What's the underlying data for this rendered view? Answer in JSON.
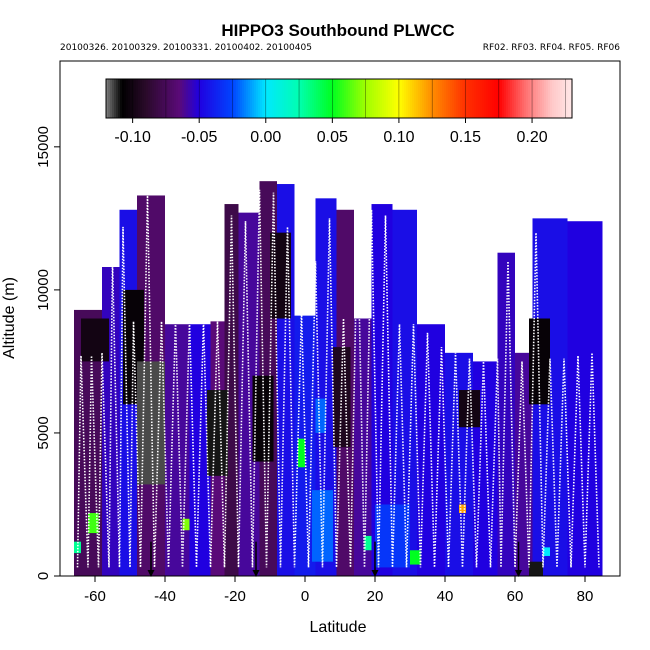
{
  "chart_data": {
    "type": "heatmap",
    "title": "HIPPO3 Southbound PLWCC",
    "dates_text": "20100326. 20100329. 20100331. 20100402. 20100405",
    "flights_text": "RF02. RF03. RF04. RF05. RF06",
    "xlabel": "Latitude",
    "ylabel": "Altitude (m)",
    "xlim": [
      -70,
      90
    ],
    "ylim": [
      0,
      18000
    ],
    "x_ticks": [
      -60,
      -40,
      -20,
      0,
      20,
      40,
      60,
      80
    ],
    "y_ticks": [
      0,
      5000,
      10000,
      15000
    ],
    "x_tick_labels": [
      "-60",
      "-40",
      "-20",
      "0",
      "20",
      "40",
      "60",
      "80"
    ],
    "y_tick_labels": [
      "0",
      "5000",
      "10000",
      "15000"
    ],
    "colorbar": {
      "range": [
        -0.12,
        0.23
      ],
      "ticks": [
        -0.1,
        -0.05,
        0.0,
        0.05,
        0.1,
        0.15,
        0.2
      ],
      "tick_labels": [
        "-0.10",
        "-0.05",
        "0.00",
        "0.05",
        "0.10",
        "0.15",
        "0.20"
      ],
      "stops": [
        {
          "v": -0.12,
          "c": "#7f7f7f"
        },
        {
          "v": -0.108,
          "c": "#000000"
        },
        {
          "v": -0.09,
          "c": "#2a0a2a"
        },
        {
          "v": -0.065,
          "c": "#5a0a78"
        },
        {
          "v": -0.05,
          "c": "#2000e0"
        },
        {
          "v": -0.025,
          "c": "#0044ff"
        },
        {
          "v": 0.0,
          "c": "#00e8ff"
        },
        {
          "v": 0.025,
          "c": "#00ffb0"
        },
        {
          "v": 0.05,
          "c": "#00ff20"
        },
        {
          "v": 0.075,
          "c": "#a0ff00"
        },
        {
          "v": 0.1,
          "c": "#ffff00"
        },
        {
          "v": 0.125,
          "c": "#ff8c00"
        },
        {
          "v": 0.15,
          "c": "#ff3000"
        },
        {
          "v": 0.175,
          "c": "#ff0000"
        },
        {
          "v": 0.195,
          "c": "#ff7070"
        },
        {
          "v": 0.215,
          "c": "#ffc8c8"
        },
        {
          "v": 0.23,
          "c": "#ffe8e8"
        }
      ]
    },
    "columns": [
      {
        "x0": -66,
        "x1": -58,
        "top": 9300,
        "val": -0.075
      },
      {
        "x0": -58,
        "x1": -53,
        "top": 10800,
        "val": -0.055
      },
      {
        "x0": -53,
        "x1": -48,
        "top": 12800,
        "val": -0.045
      },
      {
        "x0": -48,
        "x1": -40,
        "top": 13300,
        "val": -0.07
      },
      {
        "x0": -40,
        "x1": -33,
        "top": 8800,
        "val": -0.06
      },
      {
        "x0": -33,
        "x1": -27,
        "top": 8800,
        "val": -0.05
      },
      {
        "x0": -27,
        "x1": -23,
        "top": 8900,
        "val": -0.065
      },
      {
        "x0": -23,
        "x1": -19,
        "top": 13000,
        "val": -0.08
      },
      {
        "x0": -19,
        "x1": -13,
        "top": 12700,
        "val": -0.06
      },
      {
        "x0": -13,
        "x1": -8,
        "top": 13800,
        "val": -0.075
      },
      {
        "x0": -8,
        "x1": -3,
        "top": 13700,
        "val": -0.045
      },
      {
        "x0": -3,
        "x1": 3,
        "top": 9100,
        "val": -0.04
      },
      {
        "x0": 3,
        "x1": 9,
        "top": 13200,
        "val": -0.045
      },
      {
        "x0": 9,
        "x1": 14,
        "top": 12800,
        "val": -0.07
      },
      {
        "x0": 14,
        "x1": 19,
        "top": 9000,
        "val": -0.06
      },
      {
        "x0": 19,
        "x1": 25,
        "top": 13000,
        "val": -0.05
      },
      {
        "x0": 25,
        "x1": 32,
        "top": 12800,
        "val": -0.045
      },
      {
        "x0": 32,
        "x1": 40,
        "top": 8800,
        "val": -0.05
      },
      {
        "x0": 40,
        "x1": 48,
        "top": 7800,
        "val": -0.045
      },
      {
        "x0": 48,
        "x1": 55,
        "top": 7500,
        "val": -0.05
      },
      {
        "x0": 55,
        "x1": 60,
        "top": 11300,
        "val": -0.055
      },
      {
        "x0": 60,
        "x1": 65,
        "top": 7800,
        "val": -0.06
      },
      {
        "x0": 65,
        "x1": 75,
        "top": 12500,
        "val": -0.045
      },
      {
        "x0": 75,
        "x1": 85,
        "top": 12400,
        "val": -0.05
      }
    ],
    "patches": [
      {
        "x0": -52,
        "x1": -46,
        "y0": 6000,
        "y1": 10000,
        "val": -0.105
      },
      {
        "x0": -48,
        "x1": -40,
        "y0": 3200,
        "y1": 7500,
        "val": -0.115
      },
      {
        "x0": -28,
        "x1": -22,
        "y0": 3500,
        "y1": 6500,
        "val": -0.11
      },
      {
        "x0": -15,
        "x1": -9,
        "y0": 4000,
        "y1": 7000,
        "val": -0.105
      },
      {
        "x0": -10,
        "x1": -4,
        "y0": 9000,
        "y1": 12000,
        "val": -0.1
      },
      {
        "x0": 8,
        "x1": 13,
        "y0": 4500,
        "y1": 8000,
        "val": -0.095
      },
      {
        "x0": 44,
        "x1": 50,
        "y0": 5200,
        "y1": 6500,
        "val": -0.1
      },
      {
        "x0": 64,
        "x1": 70,
        "y0": 6000,
        "y1": 9000,
        "val": -0.105
      },
      {
        "x0": -64,
        "x1": -56,
        "y0": 7500,
        "y1": 9000,
        "val": -0.1
      },
      {
        "x0": 2,
        "x1": 8,
        "y0": 500,
        "y1": 3000,
        "val": -0.02
      },
      {
        "x0": 20,
        "x1": 30,
        "y0": 300,
        "y1": 2500,
        "val": -0.03
      },
      {
        "x0": 3,
        "x1": 6,
        "y0": 5000,
        "y1": 6200,
        "val": -0.02
      },
      {
        "x0": -2,
        "x1": 0,
        "y0": 3800,
        "y1": 4800,
        "val": 0.05
      },
      {
        "x0": -62,
        "x1": -59,
        "y0": 1500,
        "y1": 2200,
        "val": 0.06
      },
      {
        "x0": -66,
        "x1": -64,
        "y0": 800,
        "y1": 1200,
        "val": 0.03
      },
      {
        "x0": -35,
        "x1": -33,
        "y0": 1600,
        "y1": 2000,
        "val": 0.07
      },
      {
        "x0": 44,
        "x1": 46,
        "y0": 2200,
        "y1": 2500,
        "val": 0.12
      },
      {
        "x0": 30,
        "x1": 33,
        "y0": 400,
        "y1": 900,
        "val": 0.05
      },
      {
        "x0": 17,
        "x1": 19,
        "y0": 900,
        "y1": 1400,
        "val": 0.03
      },
      {
        "x0": 68,
        "x1": 70,
        "y0": 700,
        "y1": 1000,
        "val": 0.0
      },
      {
        "x0": 64,
        "x1": 68,
        "y0": 0,
        "y1": 500,
        "val": -0.11
      }
    ],
    "flight_track": [
      [
        -65,
        300
      ],
      [
        -64,
        7700
      ],
      [
        -62,
        300
      ],
      [
        -61,
        7700
      ],
      [
        -59,
        300
      ],
      [
        -58,
        7800
      ],
      [
        -56,
        300
      ],
      [
        -55,
        11000
      ],
      [
        -53,
        300
      ],
      [
        -52,
        12200
      ],
      [
        -50,
        300
      ],
      [
        -49,
        8900
      ],
      [
        -47,
        300
      ],
      [
        -45,
        13300
      ],
      [
        -43,
        300
      ],
      [
        -41,
        8900
      ],
      [
        -39,
        300
      ],
      [
        -37,
        8900
      ],
      [
        -35,
        300
      ],
      [
        -33,
        8900
      ],
      [
        -31,
        300
      ],
      [
        -29,
        8900
      ],
      [
        -27,
        300
      ],
      [
        -25,
        8900
      ],
      [
        -23,
        300
      ],
      [
        -21,
        12600
      ],
      [
        -19,
        300
      ],
      [
        -17,
        12400
      ],
      [
        -15,
        300
      ],
      [
        -13,
        13500
      ],
      [
        -11,
        300
      ],
      [
        -9,
        13400
      ],
      [
        -7,
        300
      ],
      [
        -5,
        12200
      ],
      [
        -3,
        300
      ],
      [
        -1,
        9200
      ],
      [
        1,
        300
      ],
      [
        3,
        11000
      ],
      [
        5,
        300
      ],
      [
        7,
        12500
      ],
      [
        9,
        300
      ],
      [
        11,
        9000
      ],
      [
        13,
        300
      ],
      [
        15,
        12300
      ],
      [
        17,
        300
      ],
      [
        19,
        12800
      ],
      [
        21,
        300
      ],
      [
        23,
        12600
      ],
      [
        25,
        300
      ],
      [
        27,
        8800
      ],
      [
        29,
        300
      ],
      [
        31,
        8800
      ],
      [
        33,
        300
      ],
      [
        35,
        8500
      ],
      [
        37,
        300
      ],
      [
        39,
        8000
      ],
      [
        41,
        300
      ],
      [
        43,
        7800
      ],
      [
        45,
        300
      ],
      [
        47,
        7600
      ],
      [
        49,
        300
      ],
      [
        51,
        7500
      ],
      [
        53,
        300
      ],
      [
        55,
        7600
      ],
      [
        56,
        300
      ],
      [
        58,
        11000
      ],
      [
        60,
        300
      ],
      [
        62,
        7500
      ],
      [
        64,
        300
      ],
      [
        66,
        12000
      ],
      [
        68,
        300
      ],
      [
        70,
        7600
      ],
      [
        72,
        300
      ],
      [
        74,
        7600
      ],
      [
        76,
        300
      ],
      [
        78,
        7700
      ],
      [
        80,
        300
      ],
      [
        82,
        7800
      ],
      [
        84,
        300
      ]
    ],
    "markers_lat": [
      -44,
      -14,
      20,
      61
    ]
  }
}
